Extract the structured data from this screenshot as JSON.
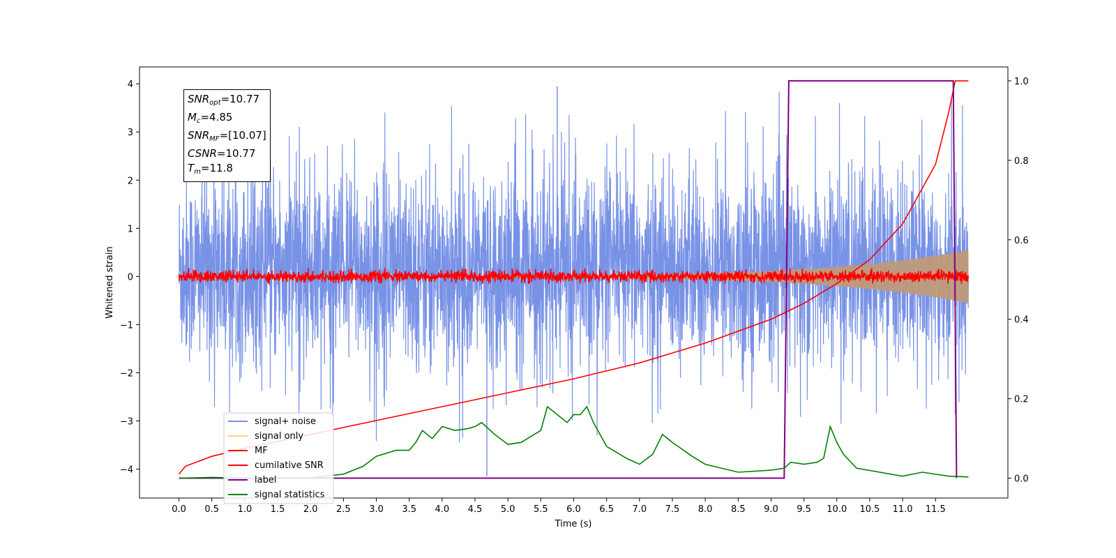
{
  "chart_data": {
    "type": "line",
    "xlabel": "Time (s)",
    "ylabel": "Whitened strain",
    "xlim": [
      -0.6,
      12.6
    ],
    "ylim": [
      -4.6,
      4.35
    ],
    "y2lim": [
      -0.05,
      1.035
    ],
    "xticks": [
      "0.0",
      "0.5",
      "1.0",
      "1.5",
      "2.0",
      "2.5",
      "3.0",
      "3.5",
      "4.0",
      "4.5",
      "5.0",
      "5.5",
      "6.0",
      "6.5",
      "7.0",
      "7.5",
      "8.0",
      "8.5",
      "9.0",
      "9.5",
      "10.0",
      "10.5",
      "11.0",
      "11.5"
    ],
    "yticks": [
      "4",
      "3",
      "2",
      "1",
      "0",
      "−1",
      "−2",
      "−3",
      "−4"
    ],
    "y2ticks": [
      "1.0",
      "0.8",
      "0.6",
      "0.4",
      "0.2",
      "0.0"
    ],
    "legend_position": "lower-left",
    "legend": [
      "signal+ noise",
      "signal only",
      "MF",
      "cumilative SNR",
      "label",
      "signal statistics"
    ],
    "annotation": {
      "snr_opt_sym": "SNR",
      "snr_opt_sub": "opt",
      "snr_opt_val": "=10.77",
      "mc_sym": "M",
      "mc_sub": "c",
      "mc_val": "=4.85",
      "snr_mf_sym": "SNR",
      "snr_mf_sub": "MF",
      "snr_mf_val": "=[10.07]",
      "csnr_sym": "CSNR",
      "csnr_val": "=10.77",
      "tm_sym": "T",
      "tm_sub": "m",
      "tm_val": "=11.8"
    },
    "series": [
      {
        "name": "signal+ noise",
        "color": "#7892e6",
        "t_start": 0.0,
        "t_end": 12.0,
        "band": [
          -1.6,
          1.9
        ],
        "max": 3.95,
        "min": -4.15
      },
      {
        "name": "signal only",
        "color": "#c09a78",
        "t_start": 0.0,
        "t_end": 12.0,
        "amplitude_start": 0.02,
        "amplitude_end": 0.55
      },
      {
        "name": "MF",
        "color": "#ff0000",
        "t_start": 0.0,
        "t_end": 12.0,
        "band": [
          -0.1,
          0.15
        ]
      },
      {
        "name": "cumilative SNR",
        "color": "#ff0000",
        "axis": "right",
        "x": [
          0.0,
          0.1,
          0.5,
          1.0,
          2.0,
          3.0,
          4.0,
          5.0,
          6.0,
          7.0,
          8.0,
          9.0,
          9.5,
          10.0,
          10.5,
          11.0,
          11.5,
          11.7,
          11.8,
          12.0
        ],
        "y": [
          0.01,
          0.03,
          0.055,
          0.075,
          0.11,
          0.145,
          0.18,
          0.215,
          0.25,
          0.29,
          0.34,
          0.4,
          0.44,
          0.49,
          0.55,
          0.64,
          0.79,
          0.92,
          1.0,
          1.0
        ]
      },
      {
        "name": "label",
        "color": "#800080",
        "axis": "right",
        "x": [
          0.0,
          9.2,
          9.27,
          11.77,
          11.82,
          11.82
        ],
        "y": [
          0.0,
          0.0,
          1.0,
          1.0,
          0.0,
          0.0
        ]
      },
      {
        "name": "signal statistics",
        "color": "#008000",
        "axis": "right",
        "x": [
          0.0,
          0.5,
          1.0,
          1.5,
          2.0,
          2.5,
          2.8,
          3.0,
          3.3,
          3.5,
          3.6,
          3.7,
          3.85,
          4.0,
          4.2,
          4.4,
          4.5,
          4.6,
          4.8,
          5.0,
          5.2,
          5.5,
          5.6,
          5.75,
          5.9,
          6.0,
          6.1,
          6.2,
          6.3,
          6.5,
          6.8,
          7.0,
          7.2,
          7.35,
          7.5,
          7.8,
          8.0,
          8.5,
          9.0,
          9.2,
          9.3,
          9.5,
          9.7,
          9.8,
          9.9,
          10.0,
          10.1,
          10.3,
          11.0,
          11.3,
          11.7,
          12.0
        ],
        "y": [
          0.0,
          0.002,
          0.0,
          0.0,
          0.001,
          0.01,
          0.03,
          0.055,
          0.07,
          0.07,
          0.09,
          0.12,
          0.1,
          0.13,
          0.12,
          0.125,
          0.13,
          0.14,
          0.11,
          0.085,
          0.09,
          0.12,
          0.18,
          0.16,
          0.14,
          0.16,
          0.16,
          0.18,
          0.14,
          0.08,
          0.05,
          0.035,
          0.06,
          0.11,
          0.09,
          0.055,
          0.035,
          0.015,
          0.02,
          0.025,
          0.04,
          0.035,
          0.04,
          0.05,
          0.13,
          0.09,
          0.06,
          0.025,
          0.005,
          0.015,
          0.005,
          0.003
        ]
      }
    ]
  }
}
